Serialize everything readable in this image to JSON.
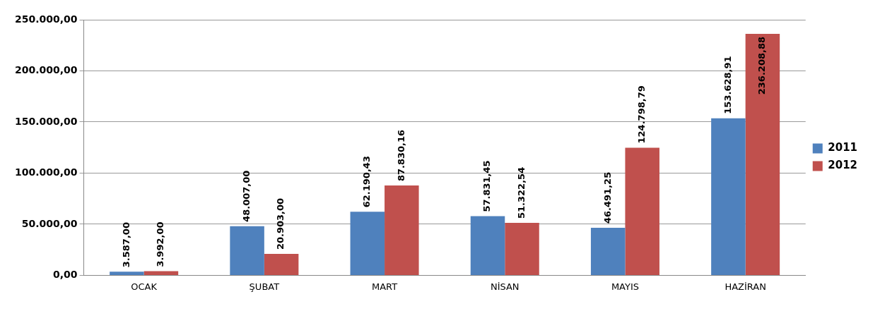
{
  "chart_data": {
    "type": "bar",
    "categories": [
      "OCAK",
      "ŞUBAT",
      "MART",
      "NİSAN",
      "MAYIS",
      "HAZİRAN"
    ],
    "series": [
      {
        "name": "2011",
        "color": "#4f81bd",
        "values": [
          3587,
          48007,
          62190.43,
          57831.45,
          46491.25,
          153628.91
        ],
        "value_labels": [
          "3.587,00",
          "48.007,00",
          "62.190,43",
          "57.831,45",
          "46.491,25",
          "153.628,91"
        ]
      },
      {
        "name": "2012",
        "color": "#c0504d",
        "values": [
          3992,
          20903,
          87830.16,
          51322.54,
          124798.79,
          236208.88
        ],
        "value_labels": [
          "3.992,00",
          "20.903,00",
          "87.830,16",
          "51.322,54",
          "124.798,79",
          "236.208,88"
        ]
      }
    ],
    "ylim": [
      0,
      250000
    ],
    "yticks": [
      {
        "value": 0,
        "label": "0,00"
      },
      {
        "value": 50000,
        "label": "50.000,00"
      },
      {
        "value": 100000,
        "label": "100.000,00"
      },
      {
        "value": 150000,
        "label": "150.000,00"
      },
      {
        "value": 200000,
        "label": "200.000,00"
      },
      {
        "value": 250000,
        "label": "250.000,00"
      }
    ],
    "grid": "y",
    "legend": "right"
  }
}
